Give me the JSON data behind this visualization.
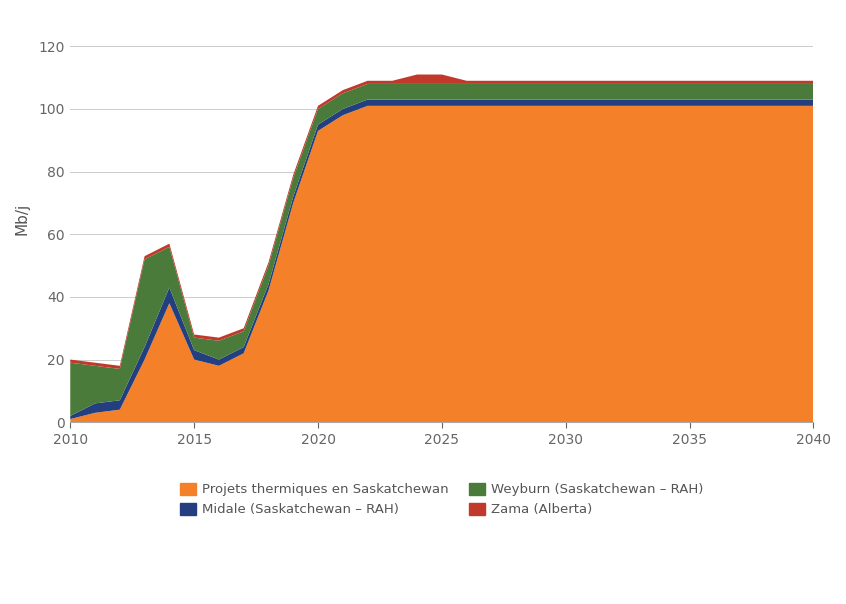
{
  "ylabel": "Mb/j",
  "xlabel": "",
  "xlim": [
    2010,
    2040
  ],
  "ylim": [
    0,
    130
  ],
  "yticks": [
    0,
    20,
    40,
    60,
    80,
    100,
    120
  ],
  "xticks": [
    2010,
    2015,
    2020,
    2025,
    2030,
    2035,
    2040
  ],
  "background_color": "#ffffff",
  "years": [
    2010,
    2011,
    2012,
    2013,
    2014,
    2015,
    2016,
    2017,
    2018,
    2019,
    2020,
    2021,
    2022,
    2023,
    2024,
    2025,
    2026,
    2027,
    2028,
    2029,
    2030,
    2031,
    2032,
    2033,
    2034,
    2035,
    2036,
    2037,
    2038,
    2039,
    2040
  ],
  "series": {
    "Projets thermiques en Saskatchewan": {
      "color": "#F4802A",
      "values": [
        1,
        3,
        4,
        20,
        38,
        20,
        18,
        22,
        42,
        70,
        93,
        98,
        101,
        101,
        101,
        101,
        101,
        101,
        101,
        101,
        101,
        101,
        101,
        101,
        101,
        101,
        101,
        101,
        101,
        101,
        101
      ]
    },
    "Midale (Saskatchewan - RAH)": {
      "color": "#243F7F",
      "values": [
        1,
        3,
        3,
        4,
        5,
        3,
        2,
        2,
        2,
        2,
        2,
        2,
        2,
        2,
        2,
        2,
        2,
        2,
        2,
        2,
        2,
        2,
        2,
        2,
        2,
        2,
        2,
        2,
        2,
        2,
        2
      ]
    },
    "Weyburn (Saskatchewan - RAH)": {
      "color": "#4B7B3A",
      "values": [
        17,
        12,
        10,
        28,
        13,
        4,
        6,
        5,
        6,
        6,
        5,
        5,
        5,
        5,
        5,
        5,
        5,
        5,
        5,
        5,
        5,
        5,
        5,
        5,
        5,
        5,
        5,
        5,
        5,
        5,
        5
      ]
    },
    "Zama (Alberta)": {
      "color": "#C0392B",
      "values": [
        1,
        1,
        1,
        1,
        1,
        1,
        1,
        1,
        1,
        1,
        1,
        1,
        1,
        1,
        3,
        3,
        1,
        1,
        1,
        1,
        1,
        1,
        1,
        1,
        1,
        1,
        1,
        1,
        1,
        1,
        1
      ]
    }
  },
  "legend_order": [
    "Projets thermiques en Saskatchewan",
    "Midale (Saskatchewan – RAH)",
    "Weyburn (Saskatchewan – RAH)",
    "Zama (Alberta)"
  ],
  "legend_colors": [
    "#F4802A",
    "#243F7F",
    "#4B7B3A",
    "#C0392B"
  ],
  "stack_order": [
    "Projets thermiques en Saskatchewan",
    "Midale (Saskatchewan - RAH)",
    "Weyburn (Saskatchewan - RAH)",
    "Zama (Alberta)"
  ],
  "grid_color": "#cccccc",
  "tick_color": "#aaaaaa"
}
